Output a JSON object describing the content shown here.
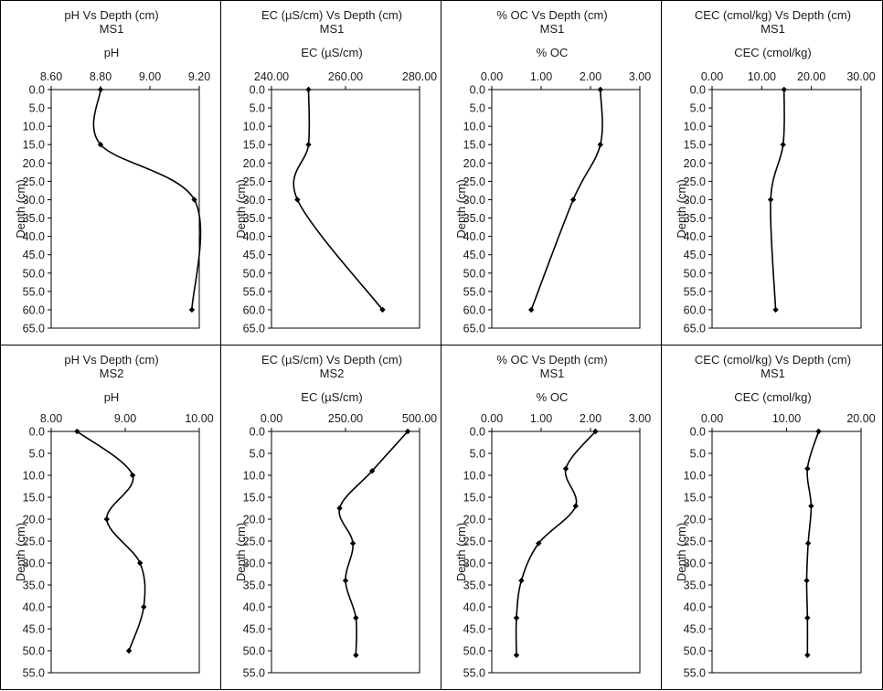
{
  "chart_data": [
    {
      "type": "line",
      "title": "pH Vs Depth (cm)",
      "subtitle": "MS1",
      "xlabel": "pH",
      "ylabel": "Depth (cm)",
      "xlim": [
        8.6,
        9.2
      ],
      "ylim": [
        0,
        65
      ],
      "xticks": [
        "8.60",
        "8.80",
        "9.00",
        "9.20"
      ],
      "yticks": [
        "0.0",
        "5.0",
        "10.0",
        "15.0",
        "20.0",
        "25.0",
        "30.0",
        "35.0",
        "40.0",
        "45.0",
        "50.0",
        "55.0",
        "60.0",
        "65.0"
      ],
      "x_axis_position": "top",
      "y_axis_inverted": true,
      "grid": false,
      "points": [
        {
          "x": 8.8,
          "y": 0
        },
        {
          "x": 8.8,
          "y": 15
        },
        {
          "x": 9.18,
          "y": 30
        },
        {
          "x": 9.17,
          "y": 60
        }
      ]
    },
    {
      "type": "line",
      "title": "EC (µS/cm) Vs Depth (cm)",
      "subtitle": "MS1",
      "xlabel": "EC (µS/cm)",
      "ylabel": "Depth (cm)",
      "xlim": [
        240,
        280
      ],
      "ylim": [
        0,
        65
      ],
      "xticks": [
        "240.00",
        "260.00",
        "280.00"
      ],
      "yticks": [
        "0.0",
        "5.0",
        "10.0",
        "15.0",
        "20.0",
        "25.0",
        "30.0",
        "35.0",
        "40.0",
        "45.0",
        "50.0",
        "55.0",
        "60.0",
        "65.0"
      ],
      "x_axis_position": "top",
      "y_axis_inverted": true,
      "grid": false,
      "points": [
        {
          "x": 250,
          "y": 0
        },
        {
          "x": 250,
          "y": 15
        },
        {
          "x": 247,
          "y": 30
        },
        {
          "x": 270,
          "y": 60
        }
      ]
    },
    {
      "type": "line",
      "title": "% OC Vs Depth (cm)",
      "subtitle": "MS1",
      "xlabel": "% OC",
      "ylabel": "Depth (cm)",
      "xlim": [
        0,
        3
      ],
      "ylim": [
        0,
        65
      ],
      "xticks": [
        "0.00",
        "1.00",
        "2.00",
        "3.00"
      ],
      "yticks": [
        "0.0",
        "5.0",
        "10.0",
        "15.0",
        "20.0",
        "25.0",
        "30.0",
        "35.0",
        "40.0",
        "45.0",
        "50.0",
        "55.0",
        "60.0",
        "65.0"
      ],
      "x_axis_position": "top",
      "y_axis_inverted": true,
      "grid": false,
      "points": [
        {
          "x": 2.2,
          "y": 0
        },
        {
          "x": 2.2,
          "y": 15
        },
        {
          "x": 1.65,
          "y": 30
        },
        {
          "x": 0.8,
          "y": 60
        }
      ]
    },
    {
      "type": "line",
      "title": "CEC (cmol/kg) Vs Depth (cm)",
      "subtitle": "MS1",
      "xlabel": "CEC (cmol/kg)",
      "ylabel": "Depth (cm)",
      "xlim": [
        0,
        30
      ],
      "ylim": [
        0,
        65
      ],
      "xticks": [
        "0.00",
        "10.00",
        "20.00",
        "30.00"
      ],
      "yticks": [
        "0.0",
        "5.0",
        "10.0",
        "15.0",
        "20.0",
        "25.0",
        "30.0",
        "35.0",
        "40.0",
        "45.0",
        "50.0",
        "55.0",
        "60.0",
        "65.0"
      ],
      "x_axis_position": "top",
      "y_axis_inverted": true,
      "grid": false,
      "points": [
        {
          "x": 14.5,
          "y": 0
        },
        {
          "x": 14.3,
          "y": 15
        },
        {
          "x": 11.8,
          "y": 30
        },
        {
          "x": 12.8,
          "y": 60
        }
      ]
    },
    {
      "type": "line",
      "title": "pH Vs Depth (cm)",
      "subtitle": "MS2",
      "xlabel": "pH",
      "ylabel": "Depth (cm)",
      "xlim": [
        8,
        10
      ],
      "ylim": [
        0,
        55
      ],
      "xticks": [
        "8.00",
        "9.00",
        "10.00"
      ],
      "yticks": [
        "0.0",
        "5.0",
        "10.0",
        "15.0",
        "20.0",
        "25.0",
        "30.0",
        "35.0",
        "40.0",
        "45.0",
        "50.0",
        "55.0"
      ],
      "x_axis_position": "top",
      "y_axis_inverted": true,
      "grid": false,
      "points": [
        {
          "x": 8.35,
          "y": 0
        },
        {
          "x": 9.1,
          "y": 10
        },
        {
          "x": 8.75,
          "y": 20
        },
        {
          "x": 9.2,
          "y": 30
        },
        {
          "x": 9.25,
          "y": 40
        },
        {
          "x": 9.05,
          "y": 50
        }
      ]
    },
    {
      "type": "line",
      "title": "EC (µS/cm) Vs Depth (cm)",
      "subtitle": "MS2",
      "xlabel": "EC (µS/cm)",
      "ylabel": "Depth (cm)",
      "xlim": [
        0,
        500
      ],
      "ylim": [
        0,
        55
      ],
      "xticks": [
        "0.00",
        "250.00",
        "500.00"
      ],
      "yticks": [
        "0.0",
        "5.0",
        "10.0",
        "15.0",
        "20.0",
        "25.0",
        "30.0",
        "35.0",
        "40.0",
        "45.0",
        "50.0",
        "55.0"
      ],
      "x_axis_position": "top",
      "y_axis_inverted": true,
      "grid": false,
      "points": [
        {
          "x": 460,
          "y": 0
        },
        {
          "x": 340,
          "y": 9
        },
        {
          "x": 230,
          "y": 17.5
        },
        {
          "x": 275,
          "y": 25.5
        },
        {
          "x": 250,
          "y": 34
        },
        {
          "x": 285,
          "y": 42.5
        },
        {
          "x": 285,
          "y": 51
        }
      ]
    },
    {
      "type": "line",
      "title": "% OC Vs Depth (cm)",
      "subtitle": "MS1",
      "xlabel": "% OC",
      "ylabel": "Depth (cm)",
      "xlim": [
        0,
        3
      ],
      "ylim": [
        0,
        55
      ],
      "xticks": [
        "0.00",
        "1.00",
        "2.00",
        "3.00"
      ],
      "yticks": [
        "0.0",
        "5.0",
        "10.0",
        "15.0",
        "20.0",
        "25.0",
        "30.0",
        "35.0",
        "40.0",
        "45.0",
        "50.0",
        "55.0"
      ],
      "x_axis_position": "top",
      "y_axis_inverted": true,
      "grid": false,
      "points": [
        {
          "x": 2.1,
          "y": 0
        },
        {
          "x": 1.5,
          "y": 8.5
        },
        {
          "x": 1.7,
          "y": 17
        },
        {
          "x": 0.95,
          "y": 25.5
        },
        {
          "x": 0.6,
          "y": 34
        },
        {
          "x": 0.5,
          "y": 42.5
        },
        {
          "x": 0.5,
          "y": 51
        }
      ]
    },
    {
      "type": "line",
      "title": "CEC (cmol/kg) Vs Depth (cm)",
      "subtitle": "MS1",
      "xlabel": "CEC (cmol/kg)",
      "ylabel": "Depth (cm)",
      "xlim": [
        0,
        20
      ],
      "ylim": [
        0,
        55
      ],
      "xticks": [
        "0.00",
        "10.00",
        "20.00"
      ],
      "yticks": [
        "0.0",
        "5.0",
        "10.0",
        "15.0",
        "20.0",
        "25.0",
        "30.0",
        "35.0",
        "40.0",
        "45.0",
        "50.0",
        "55.0"
      ],
      "x_axis_position": "top",
      "y_axis_inverted": true,
      "grid": false,
      "points": [
        {
          "x": 14.3,
          "y": 0
        },
        {
          "x": 12.8,
          "y": 8.5
        },
        {
          "x": 13.3,
          "y": 17
        },
        {
          "x": 12.9,
          "y": 25.5
        },
        {
          "x": 12.7,
          "y": 34
        },
        {
          "x": 12.8,
          "y": 42.5
        },
        {
          "x": 12.8,
          "y": 51
        }
      ]
    }
  ]
}
